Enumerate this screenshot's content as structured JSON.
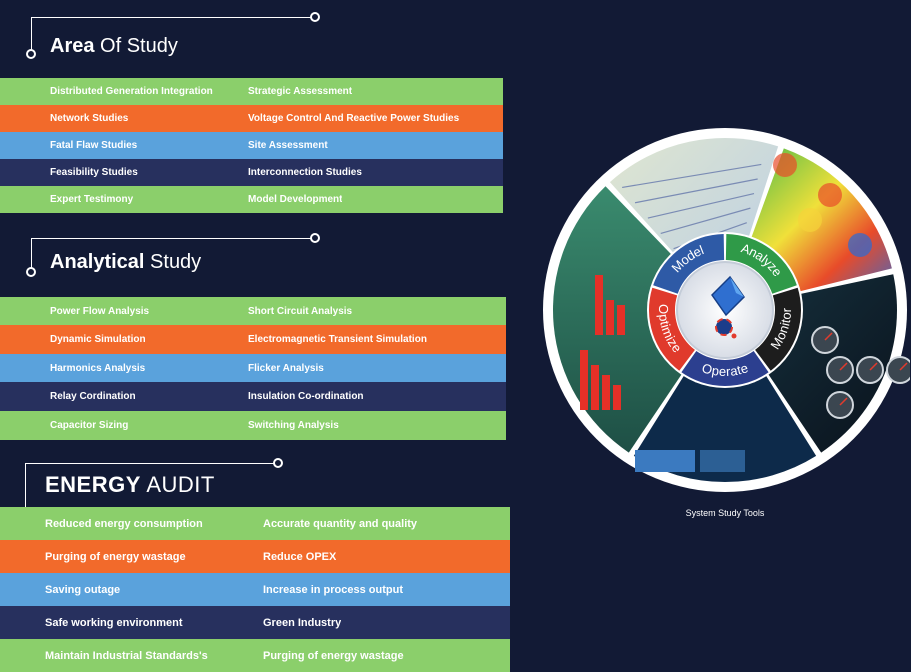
{
  "area_of_study": {
    "title_bold": "Area",
    "title_rest": " Of Study",
    "rows": [
      {
        "left": "Distributed Generation Integration",
        "right": "Strategic Assessment",
        "color": "#8bcf6b"
      },
      {
        "left": "Network Studies",
        "right": "Voltage Control And Reactive Power Studies",
        "color": "#f26a2b"
      },
      {
        "left": "Fatal Flaw Studies",
        "right": "Site Assessment",
        "color": "#5aa2dc"
      },
      {
        "left": "Feasibility Studies",
        "right": "Interconnection Studies",
        "color": "#27305e"
      },
      {
        "left": "Expert Testimony",
        "right": "Model Development",
        "color": "#8bcf6b"
      }
    ]
  },
  "analytical_study": {
    "title_bold": "Analytical",
    "title_rest": " Study",
    "rows": [
      {
        "left": "Power Flow Analysis",
        "right": "Short Circuit  Analysis"
      },
      {
        "left": "Dynamic Simulation",
        "right": "Electromagnetic Transient Simulation"
      },
      {
        "left": "Harmonics Analysis",
        "right": "Flicker Analysis"
      },
      {
        "left": "Relay Cordination",
        "right": "Insulation Co-ordination"
      },
      {
        "left": "Capacitor Sizing",
        "right": "Switching Analysis"
      }
    ]
  },
  "energy_audit": {
    "title_bold": "ENERGY",
    "title_rest": " AUDIT",
    "rows": [
      {
        "left": "Reduced energy consumption",
        "right": "Accurate quantity and quality"
      },
      {
        "left": "Purging of energy wastage",
        "right": "Reduce OPEX"
      },
      {
        "left": "Saving outage",
        "right": "Increase in process output"
      },
      {
        "left": "Safe working environment",
        "right": "Green Industry"
      },
      {
        "left": "Maintain Industrial Standards's",
        "right": "Purging of energy wastage"
      }
    ]
  },
  "wheel": {
    "segments": [
      {
        "label": "Model",
        "color": "#2e5aa6"
      },
      {
        "label": "Analyze",
        "color": "#2f9a48"
      },
      {
        "label": "Monitor",
        "color": "#1d1d1d"
      },
      {
        "label": "Operate",
        "color": "#2c3f8f"
      },
      {
        "label": "Optimize",
        "color": "#e03a2c"
      }
    ],
    "caption": "System Study Tools"
  }
}
